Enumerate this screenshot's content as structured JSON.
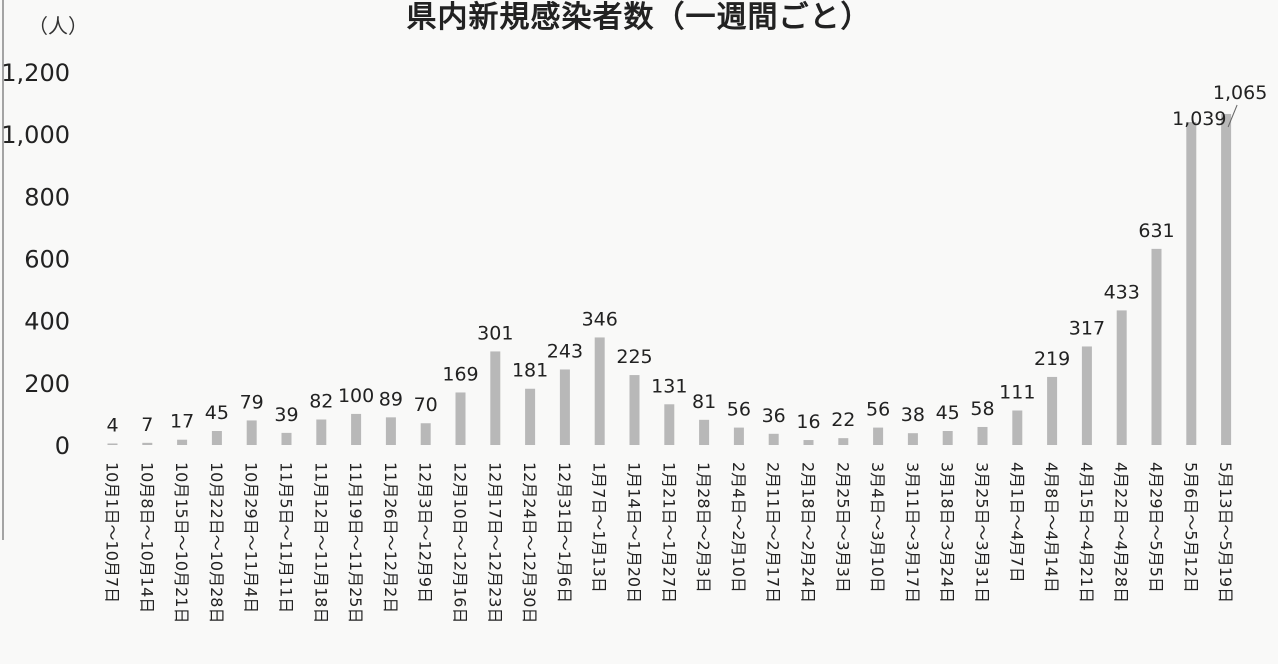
{
  "chart_data": {
    "type": "bar",
    "title": "県内新規感染者数（一週間ごと）",
    "unit_label": "（人）",
    "ylim": [
      0,
      1200
    ],
    "y_ticks": [
      "0",
      "200",
      "400",
      "600",
      "800",
      "1,000",
      "1,200"
    ],
    "grid": false,
    "bar_color": "#b8b8b8",
    "categories": [
      "10月1日～10月7日",
      "10月8日～10月14日",
      "10月15日～10月21日",
      "10月22日～10月28日",
      "10月29日～11月4日",
      "11月5日～11月11日",
      "11月12日～11月18日",
      "11月19日～11月25日",
      "11月26日～12月2日",
      "12月3日～12月9日",
      "12月10日～12月16日",
      "12月17日～12月23日",
      "12月24日～12月30日",
      "12月31日～1月6日",
      "1月7日～1月13日",
      "1月14日～1月20日",
      "1月21日～1月27日",
      "1月28日～2月3日",
      "2月4日～2月10日",
      "2月11日～2月17日",
      "2月18日～2月24日",
      "2月25日～3月3日",
      "3月4日～3月10日",
      "3月11日～3月17日",
      "3月18日～3月24日",
      "3月25日～3月31日",
      "4月1日～4月7日",
      "4月8日～4月14日",
      "4月15日～4月21日",
      "4月22日～4月28日",
      "4月29日～5月5日",
      "5月6日～5月12日",
      "5月13日～5月19日"
    ],
    "values": [
      4,
      7,
      17,
      45,
      79,
      39,
      82,
      100,
      89,
      70,
      169,
      301,
      181,
      243,
      346,
      225,
      131,
      81,
      56,
      36,
      16,
      22,
      56,
      38,
      45,
      58,
      111,
      219,
      317,
      433,
      631,
      1039,
      1065
    ],
    "value_labels": [
      "4",
      "7",
      "17",
      "45",
      "79",
      "39",
      "82",
      "100",
      "89",
      "70",
      "169",
      "301",
      "181",
      "243",
      "346",
      "225",
      "131",
      "81",
      "56",
      "36",
      "16",
      "22",
      "56",
      "38",
      "45",
      "58",
      "111",
      "219",
      "317",
      "433",
      "631",
      "1,039",
      "1,065"
    ]
  }
}
